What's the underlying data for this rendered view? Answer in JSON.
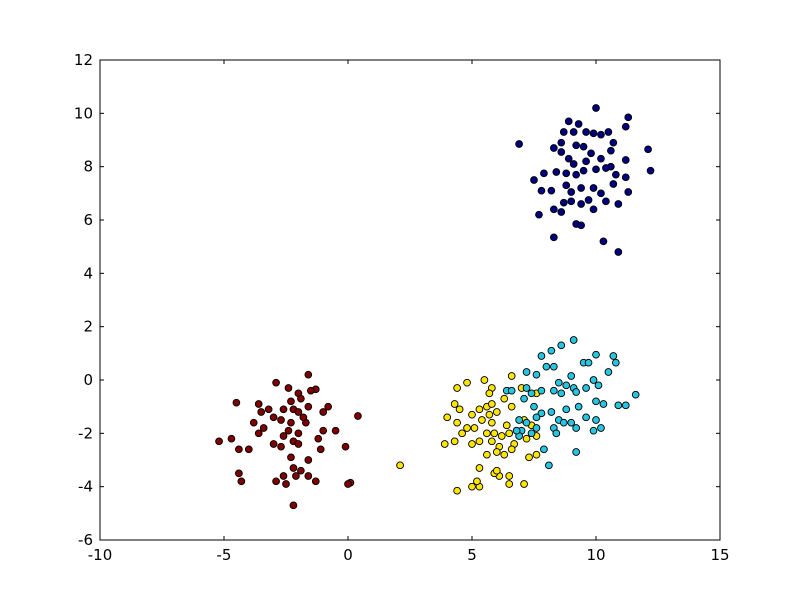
{
  "chart_data": {
    "type": "scatter",
    "title": "",
    "xlabel": "",
    "ylabel": "",
    "xlim": [
      -10,
      15
    ],
    "ylim": [
      -6,
      12
    ],
    "xticks": [
      "-10",
      "-5",
      "0",
      "5",
      "10",
      "15"
    ],
    "yticks": [
      "-6",
      "-4",
      "-2",
      "0",
      "2",
      "4",
      "6",
      "8",
      "10",
      "12"
    ],
    "xtick_values": [
      -10,
      -5,
      0,
      5,
      10,
      15
    ],
    "ytick_values": [
      -6,
      -4,
      -2,
      0,
      2,
      4,
      6,
      8,
      10,
      12
    ],
    "grid": false,
    "marker_edge_color": "#000000",
    "series": [
      {
        "color": "#00007f",
        "points": [
          [
            6.9,
            8.85
          ],
          [
            10,
            10.2
          ],
          [
            11.3,
            9.85
          ],
          [
            11.2,
            9.5
          ],
          [
            8.9,
            9.7
          ],
          [
            9.3,
            9.6
          ],
          [
            9.6,
            9.3
          ],
          [
            8.7,
            9.3
          ],
          [
            9.1,
            9.3
          ],
          [
            10.5,
            9.3
          ],
          [
            9.9,
            9.25
          ],
          [
            10.2,
            9.2
          ],
          [
            8.3,
            8.7
          ],
          [
            8.6,
            8.55
          ],
          [
            9.2,
            8.8
          ],
          [
            9.5,
            8.75
          ],
          [
            10.7,
            8.9
          ],
          [
            10.6,
            8.6
          ],
          [
            12.1,
            8.65
          ],
          [
            8.9,
            8.3
          ],
          [
            9.1,
            8.1
          ],
          [
            9.6,
            8.2
          ],
          [
            10.2,
            8.3
          ],
          [
            10.6,
            8.0
          ],
          [
            11.2,
            8.25
          ],
          [
            12.2,
            7.85
          ],
          [
            7.5,
            7.5
          ],
          [
            7.9,
            7.75
          ],
          [
            8.4,
            7.8
          ],
          [
            8.8,
            7.75
          ],
          [
            9.2,
            7.7
          ],
          [
            9.5,
            7.85
          ],
          [
            10.4,
            7.95
          ],
          [
            10.8,
            7.7
          ],
          [
            11.2,
            7.6
          ],
          [
            7.8,
            7.1
          ],
          [
            8.2,
            7.1
          ],
          [
            8.8,
            7.3
          ],
          [
            9.0,
            7.05
          ],
          [
            9.4,
            7.2
          ],
          [
            9.9,
            7.2
          ],
          [
            10.2,
            7.0
          ],
          [
            10.7,
            7.35
          ],
          [
            11.3,
            7.05
          ],
          [
            8.7,
            6.65
          ],
          [
            9.0,
            6.7
          ],
          [
            9.4,
            6.6
          ],
          [
            9.7,
            6.75
          ],
          [
            10.4,
            6.7
          ],
          [
            10.9,
            6.6
          ],
          [
            7.7,
            6.2
          ],
          [
            8.3,
            6.4
          ],
          [
            8.6,
            6.3
          ],
          [
            9.2,
            5.85
          ],
          [
            9.4,
            5.8
          ],
          [
            10.3,
            5.2
          ],
          [
            8.3,
            5.35
          ],
          [
            10.9,
            4.8
          ],
          [
            9.9,
            6.4
          ],
          [
            10.0,
            7.9
          ],
          [
            8.6,
            8.9
          ],
          [
            9.8,
            8.5
          ]
        ]
      },
      {
        "color": "#7f0000",
        "points": [
          [
            -1.6,
            0.2
          ],
          [
            -2.9,
            -0.1
          ],
          [
            -2.4,
            -0.3
          ],
          [
            -1.3,
            -0.35
          ],
          [
            -1.5,
            -0.4
          ],
          [
            -2.0,
            -0.5
          ],
          [
            -1.9,
            -0.7
          ],
          [
            -2.3,
            -0.8
          ],
          [
            -4.5,
            -0.85
          ],
          [
            -1.0,
            -1.2
          ],
          [
            -0.8,
            -1.0
          ],
          [
            0.4,
            -1.35
          ],
          [
            -2.6,
            -1.1
          ],
          [
            -2.2,
            -1.1
          ],
          [
            -2.0,
            -1.2
          ],
          [
            -1.6,
            -1.0
          ],
          [
            -3.6,
            -0.9
          ],
          [
            -3.5,
            -1.2
          ],
          [
            -3.2,
            -1.1
          ],
          [
            -3.0,
            -1.4
          ],
          [
            -2.7,
            -1.5
          ],
          [
            -2.3,
            -1.6
          ],
          [
            -1.7,
            -1.6
          ],
          [
            -0.5,
            -1.9
          ],
          [
            -1.0,
            -1.9
          ],
          [
            -1.2,
            -2.2
          ],
          [
            -3.8,
            -1.6
          ],
          [
            -3.4,
            -1.8
          ],
          [
            -3.6,
            -2.0
          ],
          [
            -2.4,
            -1.9
          ],
          [
            -2.2,
            -2.3
          ],
          [
            -2.0,
            -2.0
          ],
          [
            -5.2,
            -2.3
          ],
          [
            -4.7,
            -2.2
          ],
          [
            -3.0,
            -2.4
          ],
          [
            -2.7,
            -2.5
          ],
          [
            -2.0,
            -2.4
          ],
          [
            -0.1,
            -2.5
          ],
          [
            -4.4,
            -2.6
          ],
          [
            -4.0,
            -2.6
          ],
          [
            -1.1,
            -2.6
          ],
          [
            -2.3,
            -2.9
          ],
          [
            -2.2,
            -3.3
          ],
          [
            -1.6,
            -3.0
          ],
          [
            -2.6,
            -3.6
          ],
          [
            -1.9,
            -3.4
          ],
          [
            -2.5,
            -3.9
          ],
          [
            -2.1,
            -3.6
          ],
          [
            -1.6,
            -3.6
          ],
          [
            -4.4,
            -3.5
          ],
          [
            -4.3,
            -3.8
          ],
          [
            -1.3,
            -3.8
          ],
          [
            0.1,
            -3.85
          ],
          [
            0.0,
            -3.9
          ],
          [
            -2.2,
            -4.7
          ],
          [
            -2.9,
            -3.8
          ],
          [
            -1.8,
            -1.4
          ],
          [
            -2.6,
            -2.1
          ]
        ]
      },
      {
        "color": "#ffe600",
        "points": [
          [
            2.1,
            -3.2
          ],
          [
            4.4,
            -0.3
          ],
          [
            4.8,
            -0.1
          ],
          [
            5.5,
            0.0
          ],
          [
            5.8,
            -0.3
          ],
          [
            6.6,
            0.15
          ],
          [
            4.3,
            -0.9
          ],
          [
            4.5,
            -1.1
          ],
          [
            5.0,
            -1.3
          ],
          [
            5.3,
            -1.1
          ],
          [
            5.6,
            -1.0
          ],
          [
            5.8,
            -0.9
          ],
          [
            5.7,
            -0.5
          ],
          [
            4.0,
            -1.4
          ],
          [
            4.4,
            -1.6
          ],
          [
            5.4,
            -1.5
          ],
          [
            5.7,
            -1.3
          ],
          [
            6.0,
            -1.2
          ],
          [
            7.0,
            -0.3
          ],
          [
            7.6,
            -0.5
          ],
          [
            4.8,
            -1.8
          ],
          [
            5.1,
            -1.8
          ],
          [
            5.8,
            -1.6
          ],
          [
            6.3,
            -0.7
          ],
          [
            6.6,
            -1.0
          ],
          [
            4.6,
            -2.0
          ],
          [
            5.6,
            -2.0
          ],
          [
            5.9,
            -2.0
          ],
          [
            6.2,
            -2.1
          ],
          [
            6.5,
            -2.0
          ],
          [
            6.8,
            -1.9
          ],
          [
            7.1,
            -1.5
          ],
          [
            7.4,
            -1.7
          ],
          [
            3.9,
            -2.4
          ],
          [
            4.3,
            -2.3
          ],
          [
            5.0,
            -2.4
          ],
          [
            5.3,
            -2.3
          ],
          [
            5.8,
            -2.3
          ],
          [
            6.1,
            -2.5
          ],
          [
            6.7,
            -2.4
          ],
          [
            7.2,
            -2.2
          ],
          [
            7.6,
            -2.1
          ],
          [
            5.6,
            -2.8
          ],
          [
            6.0,
            -2.7
          ],
          [
            6.3,
            -2.8
          ],
          [
            6.6,
            -2.6
          ],
          [
            7.6,
            -2.8
          ],
          [
            5.3,
            -3.3
          ],
          [
            6.1,
            -3.6
          ],
          [
            6.5,
            -3.6
          ],
          [
            7.1,
            -3.9
          ],
          [
            5.0,
            -4.0
          ],
          [
            5.3,
            -4.0
          ],
          [
            5.9,
            -3.5
          ],
          [
            6.5,
            -3.9
          ],
          [
            4.4,
            -4.15
          ],
          [
            5.2,
            -3.8
          ],
          [
            6.0,
            -3.4
          ],
          [
            7.3,
            -2.9
          ],
          [
            6.4,
            -1.7
          ]
        ]
      },
      {
        "color": "#26c6e0",
        "points": [
          [
            9.1,
            1.5
          ],
          [
            8.6,
            1.3
          ],
          [
            8.2,
            1.1
          ],
          [
            7.8,
            0.9
          ],
          [
            10.0,
            0.95
          ],
          [
            10.7,
            0.9
          ],
          [
            10.8,
            0.65
          ],
          [
            9.5,
            0.65
          ],
          [
            9.7,
            0.65
          ],
          [
            8.0,
            0.5
          ],
          [
            8.3,
            0.5
          ],
          [
            7.2,
            0.3
          ],
          [
            7.6,
            0.2
          ],
          [
            10.5,
            0.3
          ],
          [
            9.0,
            0.15
          ],
          [
            8.5,
            -0.1
          ],
          [
            8.8,
            -0.2
          ],
          [
            9.1,
            -0.3
          ],
          [
            9.9,
            0.0
          ],
          [
            6.4,
            -0.4
          ],
          [
            6.6,
            -0.4
          ],
          [
            7.1,
            -0.7
          ],
          [
            7.4,
            -0.5
          ],
          [
            7.8,
            -0.4
          ],
          [
            8.3,
            -0.4
          ],
          [
            8.6,
            -0.5
          ],
          [
            9.2,
            -0.45
          ],
          [
            9.6,
            -0.3
          ],
          [
            10.1,
            -0.2
          ],
          [
            11.6,
            -0.55
          ],
          [
            7.5,
            -1.0
          ],
          [
            7.8,
            -1.25
          ],
          [
            8.2,
            -1.2
          ],
          [
            8.8,
            -1.1
          ],
          [
            9.3,
            -1.0
          ],
          [
            10.0,
            -0.8
          ],
          [
            10.3,
            -0.9
          ],
          [
            10.9,
            -0.95
          ],
          [
            11.2,
            -0.95
          ],
          [
            6.9,
            -1.5
          ],
          [
            7.2,
            -1.6
          ],
          [
            7.6,
            -1.4
          ],
          [
            8.5,
            -1.5
          ],
          [
            9.0,
            -1.6
          ],
          [
            9.6,
            -1.4
          ],
          [
            10.0,
            -1.5
          ],
          [
            7.0,
            -1.9
          ],
          [
            7.6,
            -1.8
          ],
          [
            8.3,
            -1.8
          ],
          [
            8.7,
            -1.6
          ],
          [
            9.2,
            -1.8
          ],
          [
            9.9,
            -1.9
          ],
          [
            10.2,
            -1.8
          ],
          [
            6.9,
            -2.1
          ],
          [
            7.4,
            -2.0
          ],
          [
            8.4,
            -2.0
          ],
          [
            7.9,
            -2.6
          ],
          [
            9.2,
            -2.7
          ],
          [
            8.1,
            -3.2
          ],
          [
            6.8,
            -1.9
          ],
          [
            7.2,
            -0.3
          ]
        ]
      }
    ]
  }
}
